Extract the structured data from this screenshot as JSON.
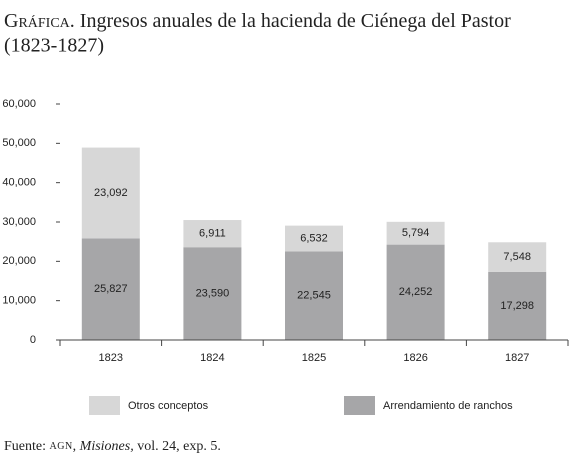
{
  "chart_data": {
    "type": "stacked_bar",
    "title_label": "Gráfica.",
    "title": "Ingresos anuales de la hacienda de Ciénega del Pastor (1823-1827)",
    "categories": [
      "1823",
      "1824",
      "1825",
      "1826",
      "1827"
    ],
    "series": [
      {
        "name": "Arrendamiento de ranchos",
        "color": "#a6a6a8",
        "values": [
          25827,
          23590,
          22545,
          24252,
          17298
        ],
        "value_labels": [
          "25,827",
          "23,590",
          "22,545",
          "24,252",
          "17,298"
        ]
      },
      {
        "name": "Otros conceptos",
        "color": "#d7d7d7",
        "values": [
          23092,
          6911,
          6532,
          5794,
          7548
        ],
        "value_labels": [
          "23,092",
          "6,911",
          "6,532",
          "5,794",
          "7,548"
        ]
      }
    ],
    "ylim": [
      0,
      60000
    ],
    "yticks": [
      0,
      {
        "value": 10000,
        "label": "10,000"
      },
      {
        "value": 20000,
        "label": "20,000"
      },
      {
        "value": 30000,
        "label": "30,000"
      },
      {
        "value": 40000,
        "label": "40,000"
      },
      {
        "value": 50000,
        "label": "50,000"
      },
      {
        "value": 60000,
        "label": "60,000"
      }
    ],
    "source": {
      "prefix": "Fuente:",
      "org": "AGN",
      "work": "Misiones,",
      "rest": "vol. 24, exp. 5."
    }
  }
}
